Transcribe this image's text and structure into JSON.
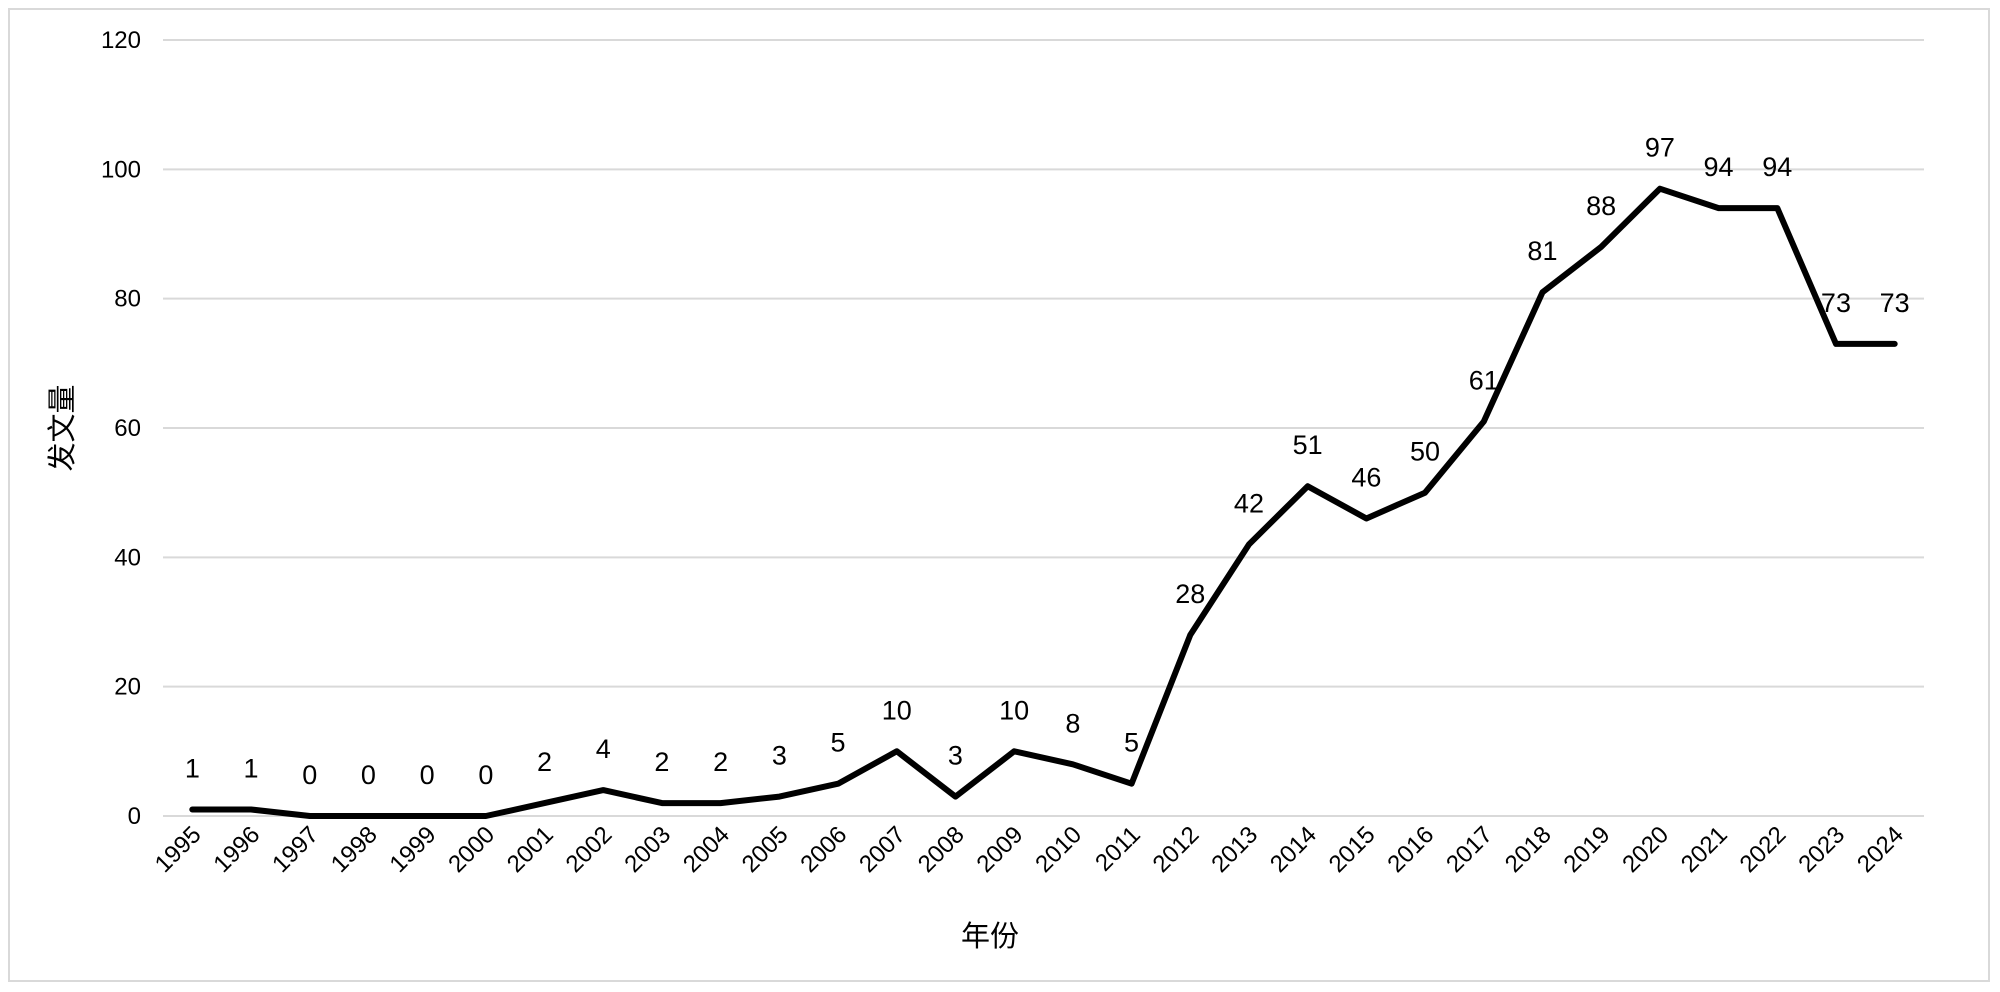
{
  "chart_data": {
    "type": "line",
    "title": "",
    "xlabel": "年份",
    "ylabel": "发文量",
    "ylim": [
      0,
      120
    ],
    "yticks": [
      0,
      20,
      40,
      60,
      80,
      100,
      120
    ],
    "grid": true,
    "legend": "none",
    "categories": [
      "1995",
      "1996",
      "1997",
      "1998",
      "1999",
      "2000",
      "2001",
      "2002",
      "2003",
      "2004",
      "2005",
      "2006",
      "2007",
      "2008",
      "2009",
      "2010",
      "2011",
      "2012",
      "2013",
      "2014",
      "2015",
      "2016",
      "2017",
      "2018",
      "2019",
      "2020",
      "2021",
      "2022",
      "2023",
      "2024"
    ],
    "series": [
      {
        "values": [
          1,
          1,
          0,
          0,
          0,
          0,
          2,
          4,
          2,
          2,
          3,
          5,
          10,
          3,
          10,
          8,
          5,
          28,
          42,
          51,
          46,
          50,
          61,
          81,
          88,
          97,
          94,
          94,
          73,
          73
        ],
        "color": "#000000",
        "data_labels": true
      }
    ]
  }
}
